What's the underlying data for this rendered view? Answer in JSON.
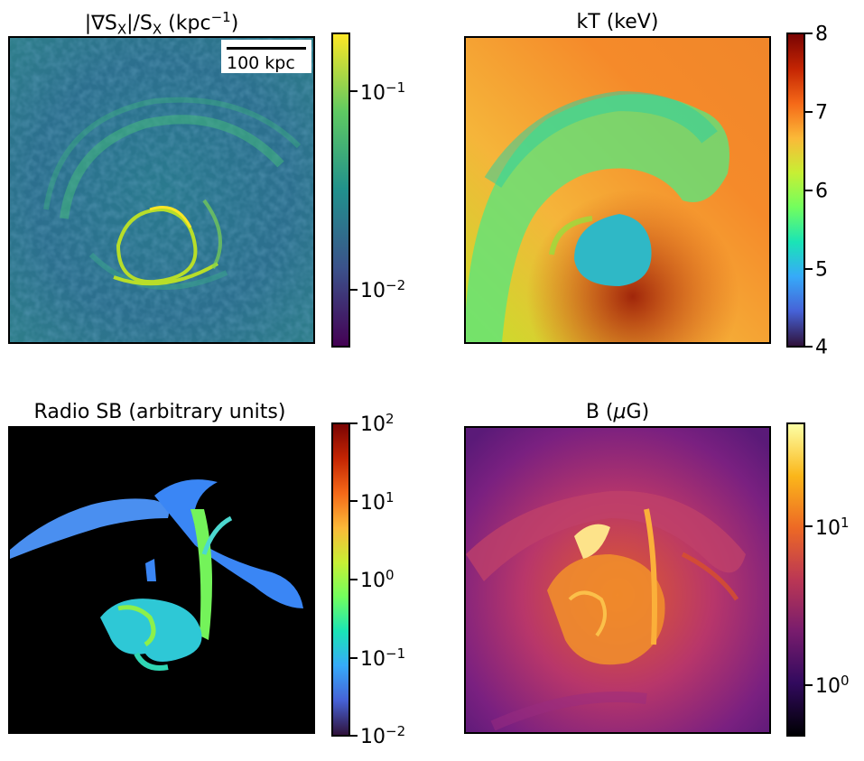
{
  "panels": {
    "gradient": {
      "title_main": "|∇S",
      "title_sub1": "X",
      "title_mid": "|/S",
      "title_sub2": "X",
      "title_units_pre": " (kpc",
      "title_units_sup": "−1",
      "title_units_post": ")",
      "scalebar_label": "100 kpc",
      "colorbar_scale": "log",
      "colorbar_colormap": "viridis",
      "ticks": [
        {
          "base": "10",
          "exp": "−1"
        },
        {
          "base": "10",
          "exp": "−2"
        }
      ]
    },
    "temperature": {
      "title": "kT (keV)",
      "colorbar_scale": "linear",
      "colorbar_colormap": "turbo",
      "range": [
        4,
        8
      ],
      "ticks": [
        "8",
        "7",
        "6",
        "5",
        "4"
      ]
    },
    "radio": {
      "title": "Radio SB (arbitrary units)",
      "colorbar_scale": "log",
      "colorbar_colormap": "turbo",
      "ticks": [
        {
          "base": "10",
          "exp": "2"
        },
        {
          "base": "10",
          "exp": "1"
        },
        {
          "base": "10",
          "exp": "0"
        },
        {
          "base": "10",
          "exp": "−1"
        },
        {
          "base": "10",
          "exp": "−2"
        }
      ]
    },
    "bfield": {
      "title_pre": "B (",
      "title_mu": "μ",
      "title_post": "G)",
      "colorbar_scale": "log",
      "colorbar_colormap": "inferno",
      "ticks": [
        {
          "base": "10",
          "exp": "1"
        },
        {
          "base": "10",
          "exp": "0"
        }
      ]
    }
  }
}
